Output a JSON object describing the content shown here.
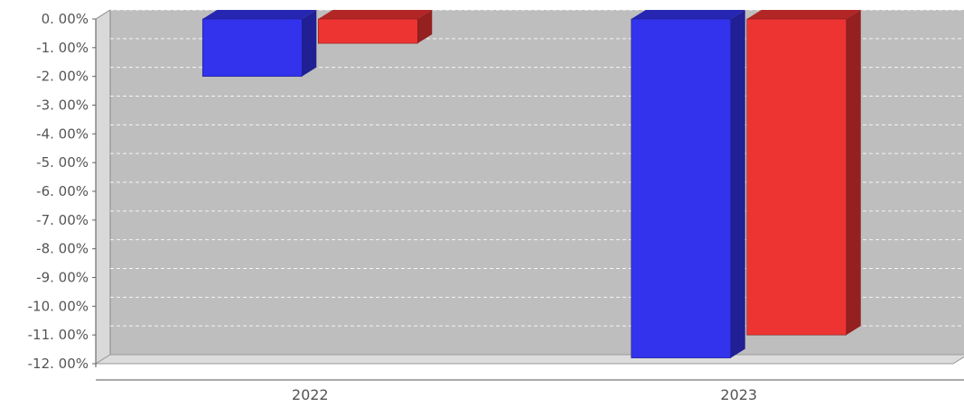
{
  "chart_data": {
    "type": "bar",
    "categories": [
      "2022",
      "2023"
    ],
    "series": [
      {
        "values": [
          -2.0,
          -11.8
        ],
        "color": "#3333ee"
      },
      {
        "values": [
          -0.85,
          -11.0
        ],
        "color": "#ee3333"
      }
    ],
    "title": "",
    "xlabel": "",
    "ylabel": "",
    "ylim": [
      -12.0,
      0.0
    ],
    "yticks": [
      "0. 00%",
      "-1. 00%",
      "-2. 00%",
      "-3. 00%",
      "-4. 00%",
      "-5. 00%",
      "-6. 00%",
      "-7. 00%",
      "-8. 00%",
      "-9. 00%",
      "-10. 00%",
      "-11. 00%",
      "-12. 00%"
    ],
    "grid": true,
    "style": "3d",
    "plot_background": "#bebebe"
  }
}
